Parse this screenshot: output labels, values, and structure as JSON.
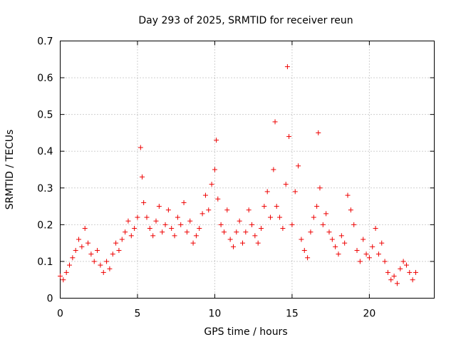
{
  "chart_data": {
    "type": "scatter",
    "title": "Day 293 of 2025, SRMTID for receiver reun",
    "xlabel": "GPS time / hours",
    "ylabel": "SRMTID / TECUs",
    "xlim": [
      0,
      24.2
    ],
    "ylim": [
      0,
      0.7
    ],
    "xticks": [
      "0",
      "5",
      "10",
      "15",
      "20"
    ],
    "yticks": [
      "0",
      "0.1",
      "0.2",
      "0.3",
      "0.4",
      "0.5",
      "0.6",
      "0.7"
    ],
    "grid": true,
    "marker": "plus",
    "color": "#ee0000",
    "series": [
      {
        "name": "SRMTID",
        "x": [
          0.0,
          0.2,
          0.4,
          0.6,
          0.8,
          1.0,
          1.2,
          1.4,
          1.6,
          1.8,
          2.0,
          2.2,
          2.4,
          2.6,
          2.8,
          3.0,
          3.2,
          3.4,
          3.6,
          3.8,
          4.0,
          4.2,
          4.4,
          4.6,
          4.8,
          5.0,
          5.2,
          5.3,
          5.4,
          5.6,
          5.8,
          6.0,
          6.2,
          6.4,
          6.6,
          6.8,
          7.0,
          7.2,
          7.4,
          7.6,
          7.8,
          8.0,
          8.2,
          8.4,
          8.6,
          8.8,
          9.0,
          9.2,
          9.4,
          9.6,
          9.8,
          10.0,
          10.1,
          10.2,
          10.4,
          10.6,
          10.8,
          11.0,
          11.2,
          11.4,
          11.6,
          11.8,
          12.0,
          12.2,
          12.4,
          12.6,
          12.8,
          13.0,
          13.2,
          13.4,
          13.6,
          13.8,
          13.9,
          14.0,
          14.2,
          14.4,
          14.6,
          14.7,
          14.8,
          15.0,
          15.2,
          15.4,
          15.6,
          15.8,
          16.0,
          16.2,
          16.4,
          16.6,
          16.7,
          16.8,
          17.0,
          17.2,
          17.4,
          17.6,
          17.8,
          18.0,
          18.2,
          18.4,
          18.6,
          18.8,
          19.0,
          19.2,
          19.4,
          19.6,
          19.8,
          20.0,
          20.2,
          20.4,
          20.6,
          20.8,
          21.0,
          21.2,
          21.4,
          21.6,
          21.8,
          22.0,
          22.2,
          22.4,
          22.6,
          22.8,
          23.0
        ],
        "y": [
          0.06,
          0.05,
          0.07,
          0.09,
          0.11,
          0.13,
          0.16,
          0.14,
          0.19,
          0.15,
          0.12,
          0.1,
          0.13,
          0.09,
          0.07,
          0.1,
          0.08,
          0.12,
          0.15,
          0.13,
          0.16,
          0.18,
          0.21,
          0.17,
          0.19,
          0.22,
          0.41,
          0.33,
          0.26,
          0.22,
          0.19,
          0.17,
          0.21,
          0.25,
          0.18,
          0.2,
          0.24,
          0.19,
          0.17,
          0.22,
          0.2,
          0.26,
          0.18,
          0.21,
          0.15,
          0.17,
          0.19,
          0.23,
          0.28,
          0.24,
          0.31,
          0.35,
          0.43,
          0.27,
          0.2,
          0.18,
          0.24,
          0.16,
          0.14,
          0.18,
          0.21,
          0.15,
          0.18,
          0.24,
          0.2,
          0.17,
          0.15,
          0.19,
          0.25,
          0.29,
          0.22,
          0.35,
          0.48,
          0.25,
          0.22,
          0.19,
          0.31,
          0.63,
          0.44,
          0.2,
          0.29,
          0.36,
          0.16,
          0.13,
          0.11,
          0.18,
          0.22,
          0.25,
          0.45,
          0.3,
          0.2,
          0.23,
          0.18,
          0.16,
          0.14,
          0.12,
          0.17,
          0.15,
          0.28,
          0.24,
          0.2,
          0.13,
          0.1,
          0.16,
          0.12,
          0.11,
          0.14,
          0.19,
          0.12,
          0.15,
          0.1,
          0.07,
          0.05,
          0.06,
          0.04,
          0.08,
          0.1,
          0.09,
          0.07,
          0.05,
          0.07
        ]
      }
    ]
  }
}
